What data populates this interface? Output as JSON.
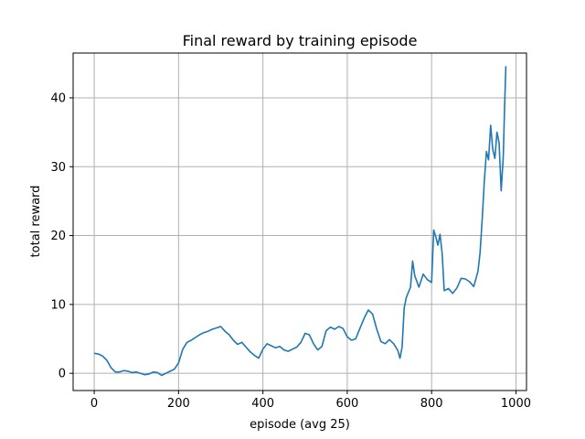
{
  "chart_data": {
    "type": "line",
    "title": "Final reward by training episode",
    "xlabel": "episode (avg 25)",
    "ylabel": "total reward",
    "xlim": [
      -50,
      1025
    ],
    "ylim": [
      -2.5,
      46.5
    ],
    "xticks": [
      0,
      200,
      400,
      600,
      800,
      1000
    ],
    "yticks": [
      0,
      10,
      20,
      30,
      40
    ],
    "grid": true,
    "line_color": "#1f77b4",
    "series": [
      {
        "x": [
          0,
          10,
          20,
          30,
          40,
          50,
          60,
          70,
          80,
          90,
          100,
          110,
          120,
          130,
          140,
          150,
          160,
          170,
          180,
          190,
          200,
          210,
          220,
          230,
          240,
          250,
          260,
          270,
          280,
          290,
          300,
          310,
          320,
          330,
          340,
          350,
          360,
          370,
          380,
          390,
          400,
          410,
          420,
          430,
          440,
          450,
          460,
          470,
          480,
          490,
          500,
          510,
          520,
          530,
          540,
          550,
          560,
          570,
          580,
          590,
          600,
          610,
          620,
          630,
          640,
          650,
          660,
          670,
          680,
          690,
          700,
          710,
          720,
          725,
          730,
          735,
          740,
          750,
          755,
          760,
          770,
          780,
          790,
          800,
          805,
          810,
          815,
          820,
          825,
          830,
          840,
          850,
          860,
          870,
          880,
          890,
          900,
          910,
          915,
          920,
          925,
          930,
          935,
          940,
          945,
          950,
          955,
          960,
          965,
          970,
          973,
          976
        ],
        "y": [
          2.9,
          2.8,
          2.5,
          1.9,
          0.8,
          0.2,
          0.2,
          0.4,
          0.3,
          0.1,
          0.2,
          0.0,
          -0.2,
          -0.1,
          0.2,
          0.1,
          -0.3,
          0.0,
          0.3,
          0.6,
          1.5,
          3.5,
          4.5,
          4.8,
          5.2,
          5.6,
          5.9,
          6.1,
          6.4,
          6.6,
          6.8,
          6.1,
          5.6,
          4.8,
          4.2,
          4.5,
          3.8,
          3.1,
          2.6,
          2.2,
          3.5,
          4.3,
          4.0,
          3.7,
          3.9,
          3.4,
          3.2,
          3.5,
          3.8,
          4.5,
          5.8,
          5.6,
          4.3,
          3.4,
          3.9,
          6.2,
          6.7,
          6.4,
          6.8,
          6.5,
          5.3,
          4.8,
          5.0,
          6.5,
          8.0,
          9.2,
          8.6,
          6.4,
          4.6,
          4.3,
          4.9,
          4.3,
          3.3,
          2.2,
          3.8,
          9.5,
          11.0,
          12.5,
          16.3,
          14.2,
          12.5,
          14.4,
          13.6,
          13.2,
          20.8,
          19.8,
          18.6,
          20.2,
          17.4,
          12.0,
          12.3,
          11.6,
          12.4,
          13.8,
          13.7,
          13.3,
          12.6,
          14.8,
          17.5,
          22.5,
          28.0,
          32.2,
          31.0,
          36.0,
          32.5,
          31.2,
          35.0,
          33.5,
          26.5,
          31.5,
          38.5,
          44.6
        ]
      }
    ]
  }
}
